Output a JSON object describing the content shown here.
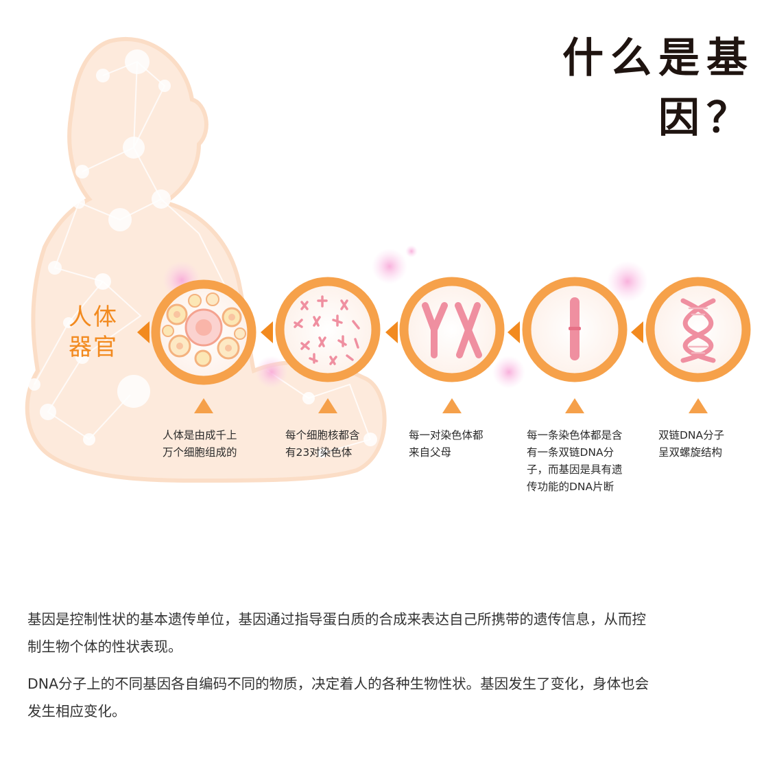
{
  "title": "什么是基因？",
  "organ_label": {
    "line1": "人体",
    "line2": "器官"
  },
  "stages": [
    {
      "icon": "cells-icon",
      "lines": [
        "人体是由成千上",
        "万个细胞组成的"
      ]
    },
    {
      "icon": "nucleus-chromosomes-icon",
      "lines": [
        "每个细胞核都含",
        "有23对染色体"
      ]
    },
    {
      "icon": "chromosome-pair-icon",
      "lines": [
        "每一对染色体都",
        "来自父母"
      ]
    },
    {
      "icon": "single-chromosome-icon",
      "lines": [
        "每一条染色体都是含",
        "有一条双链DNA分",
        "子，而基因是具有遗",
        "传功能的DNA片断"
      ]
    },
    {
      "icon": "dna-helix-icon",
      "lines": [
        "双链DNA分子",
        "呈双螺旋结构"
      ]
    }
  ],
  "description": {
    "p1": [
      "基因是控制性状的基本遗传单位，基因通过指导蛋白质的合成来表达自己所携带的遗传信息，从而控",
      "制生物个体的性状表现。"
    ],
    "p2": [
      "DNA分子上的不同基因各自编码不同的物质，决定着人的各种生物性状。基因发生了变化，身体也会",
      "发生相应变化。"
    ]
  },
  "colors": {
    "accent": "#f28a1f",
    "ring": "#f6a14a",
    "silhouette": "#fde7d6",
    "chromosome": "#ef8fa0",
    "title": "#1f1410"
  }
}
